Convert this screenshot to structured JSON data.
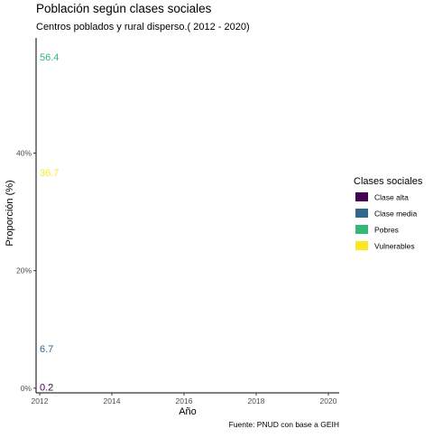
{
  "chart_data": {
    "type": "scatter",
    "title": "Población según clases sociales",
    "subtitle": "Centros poblados y rural disperso.( 2012 - 2020)",
    "xlabel": "Año",
    "ylabel": "Proporción (%)",
    "caption": "Fuente: PNUD con base a GEIH",
    "xlim": [
      2011.9,
      2020.3
    ],
    "ylim": [
      -0.8,
      59.6
    ],
    "x_ticks": [
      2012,
      2014,
      2016,
      2018,
      2020
    ],
    "y_ticks": [
      0,
      20,
      40
    ],
    "y_tick_labels": [
      "0%",
      "20%",
      "40%"
    ],
    "legend_title": "Clases sociales",
    "legend_position": "right",
    "series": [
      {
        "name": "Clase alta",
        "color": "#440154",
        "x": [
          2012
        ],
        "values": [
          0.2
        ],
        "labels": [
          "0.2"
        ]
      },
      {
        "name": "Clase media",
        "color": "#31688e",
        "x": [
          2012
        ],
        "values": [
          6.7
        ],
        "labels": [
          "6.7"
        ]
      },
      {
        "name": "Pobres",
        "color": "#35b779",
        "x": [
          2012
        ],
        "values": [
          56.4
        ],
        "labels": [
          "56.4"
        ]
      },
      {
        "name": "Vulnerables",
        "color": "#fde725",
        "x": [
          2012
        ],
        "values": [
          36.7
        ],
        "labels": [
          "36.7"
        ]
      }
    ]
  }
}
